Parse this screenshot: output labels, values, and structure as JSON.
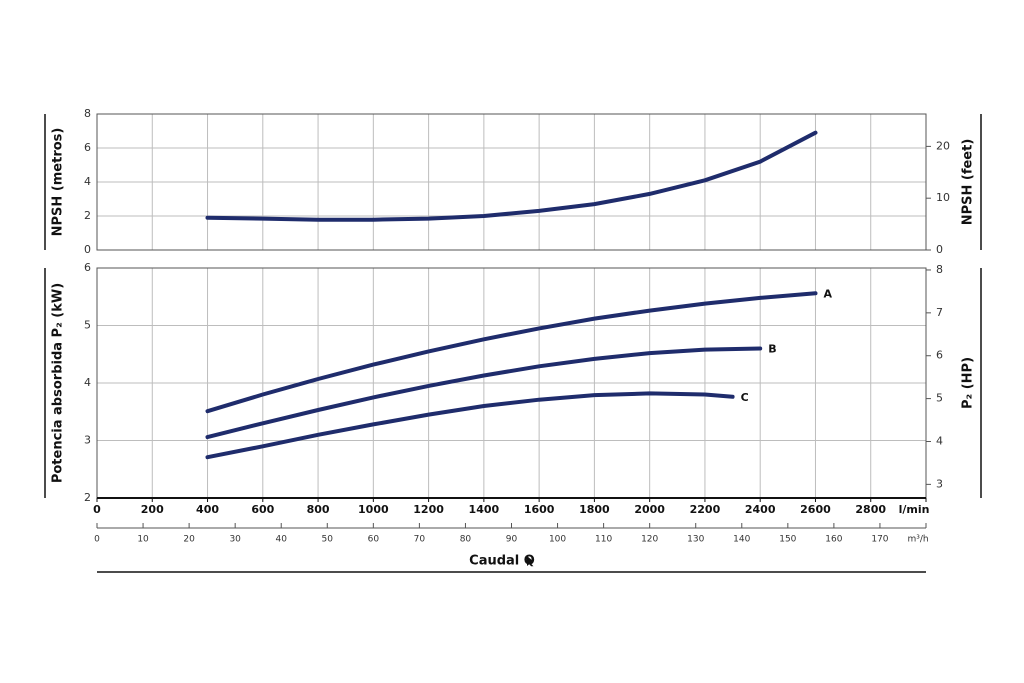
{
  "chart_data": [
    {
      "type": "line",
      "ylabel": "NPSH (metros)",
      "y2label": "NPSH (feet)",
      "ylim": [
        0,
        8
      ],
      "yticks": [
        0,
        2,
        4,
        6,
        8
      ],
      "y2lim": [
        0,
        26.25
      ],
      "y2ticks": [
        0,
        10,
        20
      ],
      "grid": true,
      "series": [
        {
          "name": null,
          "color": "#1f2c6c",
          "x": [
            400,
            600,
            800,
            1000,
            1200,
            1400,
            1600,
            1800,
            2000,
            2200,
            2400,
            2600
          ],
          "values": [
            1.9,
            1.85,
            1.78,
            1.78,
            1.85,
            2.0,
            2.3,
            2.7,
            3.3,
            4.1,
            5.2,
            6.9
          ]
        }
      ]
    },
    {
      "type": "line",
      "ylabel": "Potencia absorbida P₂ (kW)",
      "y2label": "P₂ (HP)",
      "xlabel": "Caudal Q",
      "xlim": [
        0,
        3000
      ],
      "xticks": [
        0,
        200,
        400,
        600,
        800,
        1000,
        1200,
        1400,
        1600,
        1800,
        2000,
        2200,
        2400,
        2600,
        2800,
        {
          "value": 3000,
          "label": "l/min"
        }
      ],
      "x2lim": [
        0,
        180
      ],
      "x2ticks": [
        0,
        10,
        20,
        30,
        40,
        50,
        60,
        70,
        80,
        90,
        100,
        110,
        120,
        130,
        140,
        150,
        160,
        170,
        {
          "value": 180,
          "label": "m³/h"
        }
      ],
      "ylim": [
        2,
        6
      ],
      "yticks": [
        2,
        3,
        4,
        5,
        6
      ],
      "y2lim": [
        2.682,
        8.046
      ],
      "y2ticks": [
        3,
        4,
        5,
        6,
        7,
        8
      ],
      "grid": true,
      "series": [
        {
          "name": "A",
          "color": "#1f2c6c",
          "x": [
            400,
            600,
            800,
            1000,
            1200,
            1400,
            1600,
            1800,
            2000,
            2200,
            2400,
            2600
          ],
          "values": [
            3.51,
            3.8,
            4.07,
            4.32,
            4.55,
            4.76,
            4.95,
            5.12,
            5.26,
            5.38,
            5.48,
            5.56
          ]
        },
        {
          "name": "B",
          "color": "#1f2c6c",
          "x": [
            400,
            600,
            800,
            1000,
            1200,
            1400,
            1600,
            1800,
            2000,
            2200,
            2400
          ],
          "values": [
            3.06,
            3.3,
            3.53,
            3.75,
            3.95,
            4.13,
            4.29,
            4.42,
            4.52,
            4.58,
            4.6
          ]
        },
        {
          "name": "C",
          "color": "#1f2c6c",
          "x": [
            400,
            600,
            800,
            1000,
            1200,
            1400,
            1600,
            1800,
            2000,
            2200,
            2300
          ],
          "values": [
            2.71,
            2.9,
            3.1,
            3.28,
            3.45,
            3.6,
            3.71,
            3.79,
            3.82,
            3.8,
            3.76
          ]
        }
      ]
    }
  ]
}
